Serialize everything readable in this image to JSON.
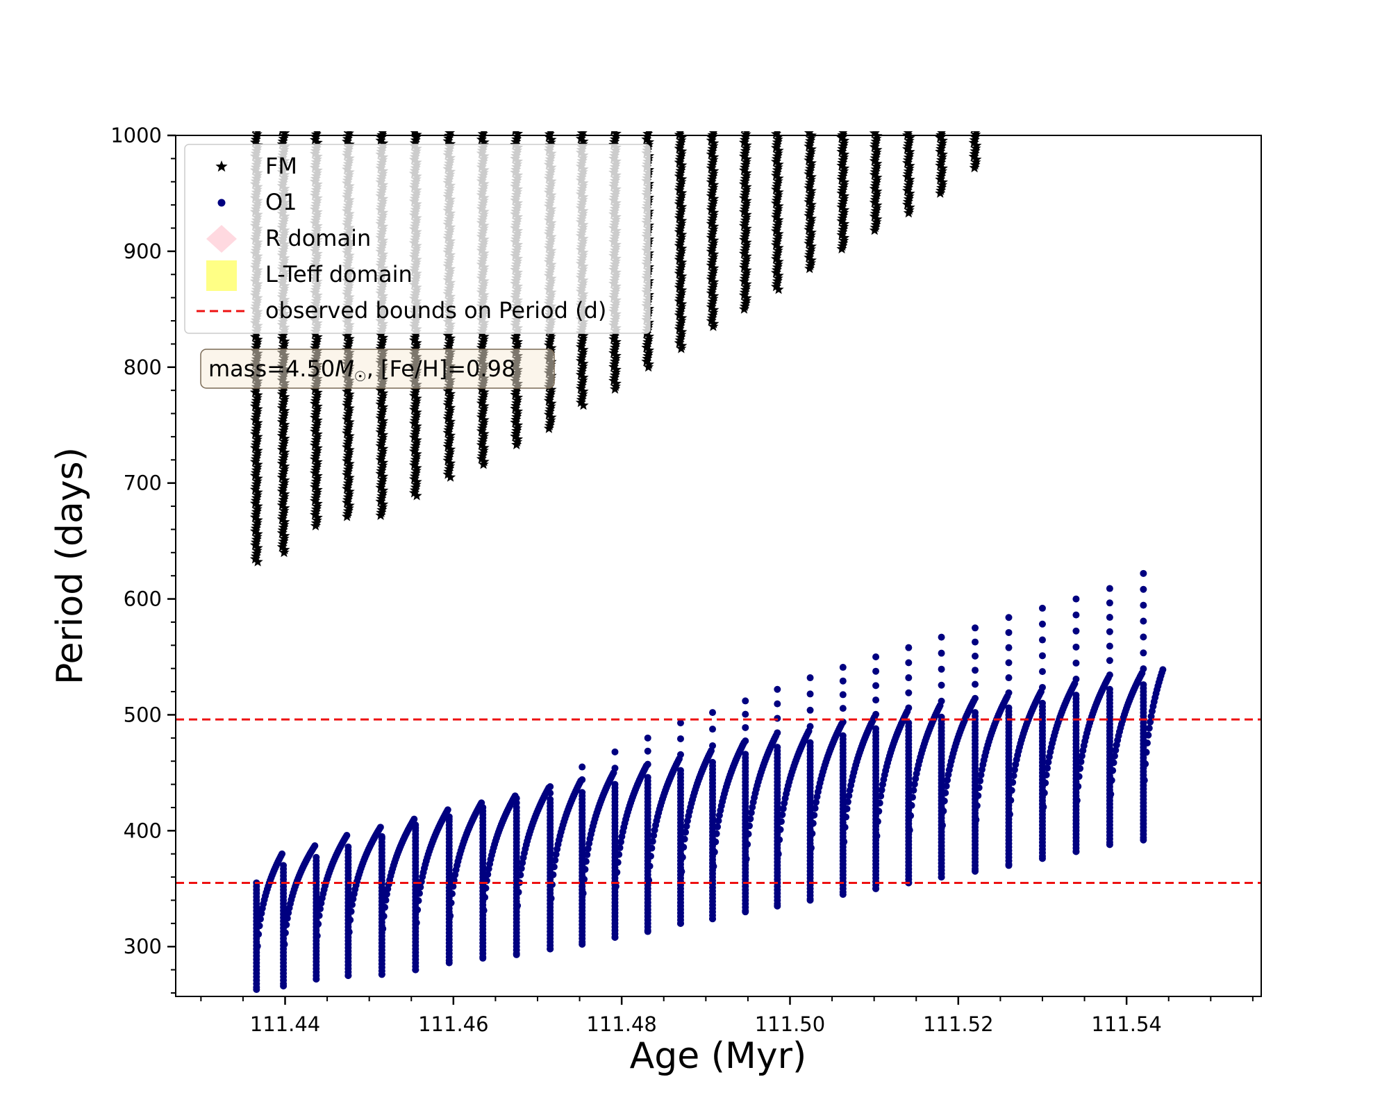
{
  "colors": {
    "fm": "#000000",
    "o1": "#000080",
    "r_domain": "#ffc0cb",
    "l_teff_domain": "#ffff66",
    "bounds": "#ee1111",
    "annotation_bg": "#f8ecd8"
  },
  "chart_data": {
    "type": "scatter",
    "title": "",
    "xlabel": "Age (Myr)",
    "ylabel": "Period (days)",
    "xlim": [
      111.427,
      111.556
    ],
    "ylim": [
      257,
      1000
    ],
    "x_ticks": [
      "111.44",
      "111.46",
      "111.48",
      "111.50",
      "111.52",
      "111.54"
    ],
    "x_tick_values": [
      111.44,
      111.46,
      111.48,
      111.5,
      111.52,
      111.54
    ],
    "y_ticks": [
      "300",
      "400",
      "500",
      "600",
      "700",
      "800",
      "900",
      "1000"
    ],
    "y_tick_values": [
      300,
      400,
      500,
      600,
      700,
      800,
      900,
      1000
    ],
    "grid": false,
    "legend_position": "top-left",
    "legend": [
      "FM",
      "O1",
      "R domain",
      "L-Teff domain",
      "observed bounds on Period (d)"
    ],
    "annotation_parts": [
      "mass=4.50",
      "M",
      "☉",
      ", [Fe/H]=0.98"
    ],
    "hlines": [
      {
        "name": "observed bounds on Period (d)",
        "y": 496
      },
      {
        "name": "observed bounds on Period (d)",
        "y": 355
      }
    ],
    "series": [
      {
        "name": "FM",
        "marker": "star",
        "description": "vertical bands of points, each spanning from its minimum period up past 1000 d",
        "x": [
          111.4366,
          111.4398,
          111.4437,
          111.4475,
          111.4515,
          111.4555,
          111.4595,
          111.4635,
          111.4675,
          111.4715,
          111.4753,
          111.4792,
          111.4831,
          111.487,
          111.4908,
          111.4947,
          111.4985,
          111.5024,
          111.5063,
          111.5102,
          111.5141,
          111.518,
          111.522
        ],
        "min_period": [
          632,
          640,
          663,
          671,
          672,
          689,
          705,
          716,
          733,
          747,
          767,
          781,
          800,
          816,
          835,
          850,
          867,
          885,
          902,
          918,
          933,
          950,
          972
        ]
      },
      {
        "name": "O1",
        "marker": "circle",
        "description": "sawtooth cycles; each cycle rises from a minimum to a maximum, with sparse points extending higher",
        "x": [
          111.4366,
          111.4398,
          111.4437,
          111.4475,
          111.4515,
          111.4555,
          111.4595,
          111.4635,
          111.4675,
          111.4715,
          111.4753,
          111.4792,
          111.4831,
          111.487,
          111.4908,
          111.4947,
          111.4985,
          111.5024,
          111.5063,
          111.5102,
          111.5141,
          111.518,
          111.522,
          111.526,
          111.53,
          111.534,
          111.538,
          111.542
        ],
        "min_period": [
          263,
          266,
          272,
          275,
          276,
          280,
          286,
          290,
          293,
          298,
          302,
          308,
          313,
          320,
          324,
          330,
          335,
          340,
          345,
          350,
          355,
          360,
          365,
          370,
          376,
          382,
          388,
          392
        ],
        "max_period": [
          380,
          387,
          396,
          403,
          410,
          418,
          424,
          430,
          437,
          443,
          450,
          456,
          462,
          469,
          476,
          482,
          486,
          492,
          498,
          503,
          508,
          512,
          516,
          520,
          527,
          532,
          536,
          539
        ],
        "spike_top": [
          355,
          370,
          375,
          385,
          395,
          405,
          412,
          420,
          428,
          438,
          455,
          468,
          480,
          493,
          502,
          512,
          522,
          532,
          541,
          550,
          558,
          567,
          575,
          584,
          592,
          600,
          609,
          622
        ]
      }
    ]
  }
}
